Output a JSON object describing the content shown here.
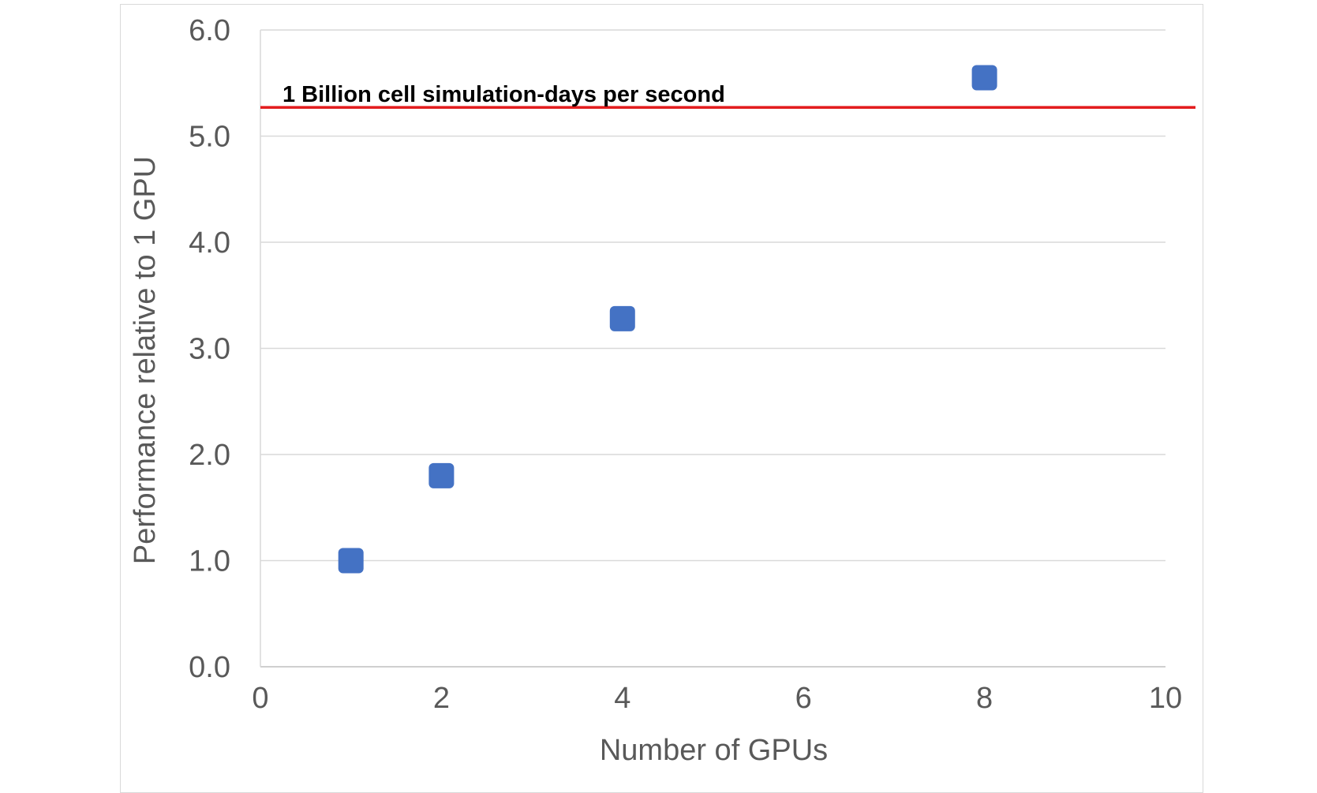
{
  "chart_data": {
    "type": "scatter",
    "title": "",
    "xlabel": "Number of GPUs",
    "ylabel": "Performance relative to 1 GPU",
    "xlim": [
      0,
      10
    ],
    "ylim": [
      0,
      6
    ],
    "x_ticks": [
      "0",
      "2",
      "4",
      "6",
      "8",
      "10"
    ],
    "y_ticks": [
      "0.0",
      "1.0",
      "2.0",
      "3.0",
      "4.0",
      "5.0",
      "6.0"
    ],
    "grid": true,
    "legend": "none",
    "series": [
      {
        "color": "#4472c4",
        "marker": "square",
        "points": [
          {
            "x": 1,
            "y": 1.0
          },
          {
            "x": 2,
            "y": 1.8
          },
          {
            "x": 4,
            "y": 3.28
          },
          {
            "x": 8,
            "y": 5.55
          }
        ]
      }
    ],
    "reference_line": {
      "y": 5.27,
      "color": "#e31a1c",
      "label": "1 Billion cell simulation-days per second"
    }
  }
}
